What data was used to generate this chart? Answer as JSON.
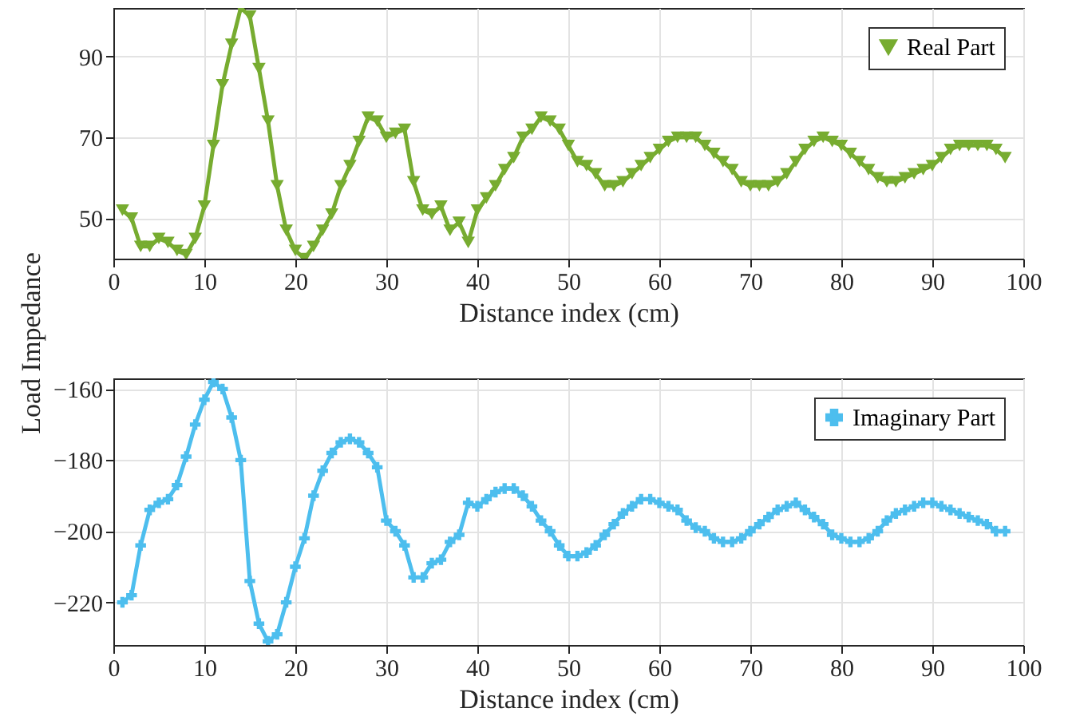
{
  "chart_data": [
    {
      "type": "line",
      "ylabel": "Load Impedance",
      "xlabel": "Distance index (cm)",
      "xlim": [
        0,
        100
      ],
      "xticks": [
        0,
        10,
        20,
        30,
        40,
        50,
        60,
        70,
        80,
        90,
        100
      ],
      "ylim": [
        40,
        102
      ],
      "yticks": [
        50,
        70,
        90
      ],
      "grid": true,
      "legend": "top right",
      "marker": "triangle",
      "line_style": "solid",
      "x": [
        1,
        2,
        3,
        4,
        5,
        6,
        7,
        8,
        9,
        10,
        11,
        12,
        13,
        14,
        15,
        16,
        17,
        18,
        19,
        20,
        21,
        22,
        23,
        24,
        25,
        26,
        27,
        28,
        29,
        30,
        31,
        32,
        33,
        34,
        35,
        36,
        37,
        38,
        39,
        40,
        41,
        42,
        43,
        44,
        45,
        46,
        47,
        48,
        49,
        50,
        51,
        52,
        53,
        54,
        55,
        56,
        57,
        58,
        59,
        60,
        61,
        62,
        63,
        64,
        65,
        66,
        67,
        68,
        69,
        70,
        71,
        72,
        73,
        74,
        75,
        76,
        77,
        78,
        79,
        80,
        81,
        82,
        83,
        84,
        85,
        86,
        87,
        88,
        89,
        90,
        91,
        92,
        93,
        94,
        95,
        96,
        97,
        98
      ],
      "series": [
        {
          "name": "Real Part",
          "color": "#77ac30",
          "values": [
            52,
            50,
            43,
            43,
            45,
            44,
            42,
            41,
            45,
            53,
            68,
            83,
            93,
            102,
            100,
            87,
            74,
            58,
            47,
            42,
            40,
            43,
            47,
            51,
            58,
            63,
            69,
            75,
            74,
            70,
            71,
            72,
            59,
            52,
            51,
            53,
            47,
            49,
            44,
            52,
            55,
            58,
            62,
            65,
            70,
            72,
            75,
            74,
            72,
            68,
            64,
            63,
            61,
            58,
            58,
            59,
            61,
            63,
            65,
            67,
            69,
            70,
            70,
            70,
            68,
            66,
            64,
            62,
            59,
            58,
            58,
            58,
            59,
            61,
            64,
            67,
            69,
            70,
            69,
            68,
            66,
            64,
            62,
            60,
            59,
            59,
            60,
            61,
            62,
            63,
            65,
            67,
            68,
            68,
            68,
            68,
            67,
            65
          ]
        }
      ]
    },
    {
      "type": "line",
      "xlabel": "Distance index (cm)",
      "xlim": [
        0,
        100
      ],
      "xticks": [
        0,
        10,
        20,
        30,
        40,
        50,
        60,
        70,
        80,
        90,
        100
      ],
      "ylim": [
        -232,
        -157
      ],
      "yticks": [
        -220,
        -200,
        -180,
        -160
      ],
      "grid": true,
      "legend": "top right",
      "marker": "cross",
      "line_style": "solid",
      "x": [
        1,
        2,
        3,
        4,
        5,
        6,
        7,
        8,
        9,
        10,
        11,
        12,
        13,
        14,
        15,
        16,
        17,
        18,
        19,
        20,
        21,
        22,
        23,
        24,
        25,
        26,
        27,
        28,
        29,
        30,
        31,
        32,
        33,
        34,
        35,
        36,
        37,
        38,
        39,
        40,
        41,
        42,
        43,
        44,
        45,
        46,
        47,
        48,
        49,
        50,
        51,
        52,
        53,
        54,
        55,
        56,
        57,
        58,
        59,
        60,
        61,
        62,
        63,
        64,
        65,
        66,
        67,
        68,
        69,
        70,
        71,
        72,
        73,
        74,
        75,
        76,
        77,
        78,
        79,
        80,
        81,
        82,
        83,
        84,
        85,
        86,
        87,
        88,
        89,
        90,
        91,
        92,
        93,
        94,
        95,
        96,
        97,
        98
      ],
      "series": [
        {
          "name": "Imaginary Part",
          "color": "#4dbeee",
          "values": [
            -220,
            -218,
            -204,
            -194,
            -192,
            -191,
            -187,
            -179,
            -170,
            -163,
            -158,
            -160,
            -168,
            -180,
            -214,
            -226,
            -231,
            -229,
            -220,
            -210,
            -202,
            -190,
            -183,
            -178,
            -175,
            -174,
            -175,
            -178,
            -182,
            -197,
            -200,
            -204,
            -213,
            -213,
            -209,
            -208,
            -203,
            -201,
            -192,
            -193,
            -191,
            -189,
            -188,
            -188,
            -190,
            -193,
            -197,
            -200,
            -204,
            -207,
            -207,
            -206,
            -204,
            -201,
            -198,
            -195,
            -193,
            -191,
            -191,
            -192,
            -193,
            -194,
            -197,
            -199,
            -200,
            -202,
            -203,
            -203,
            -202,
            -200,
            -198,
            -196,
            -194,
            -193,
            -192,
            -194,
            -196,
            -198,
            -201,
            -202,
            -203,
            -203,
            -202,
            -200,
            -197,
            -195,
            -194,
            -193,
            -192,
            -192,
            -193,
            -194,
            -195,
            -196,
            -197,
            -198,
            -200,
            -200
          ]
        }
      ]
    }
  ]
}
